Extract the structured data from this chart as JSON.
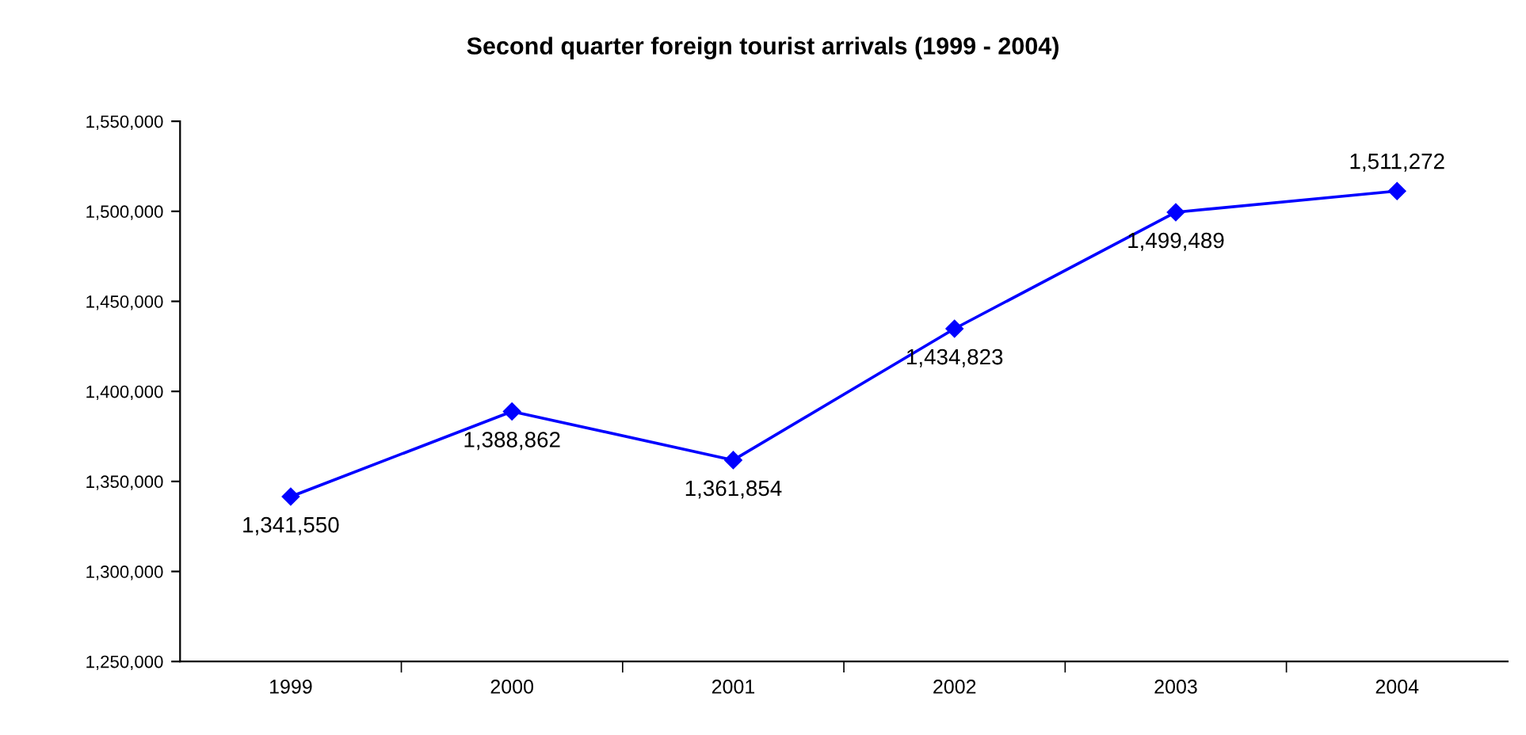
{
  "chart_data": {
    "type": "line",
    "title": "Second quarter foreign tourist arrivals (1999 - 2004)",
    "categories": [
      "1999",
      "2000",
      "2001",
      "2002",
      "2003",
      "2004"
    ],
    "series": [
      {
        "color": "#0000ff",
        "values": [
          1341550,
          1388862,
          1361854,
          1434823,
          1499489,
          1511272
        ]
      }
    ],
    "value_labels": [
      "1,341,550",
      "1,388,862",
      "1,361,854",
      "1,434,823",
      "1,499,489",
      "1,511,272"
    ],
    "ylim": [
      1250000,
      1550000
    ],
    "yticks": [
      {
        "value": 1250000,
        "label": "1,250,000"
      },
      {
        "value": 1300000,
        "label": "1,300,000"
      },
      {
        "value": 1350000,
        "label": "1,350,000"
      },
      {
        "value": 1400000,
        "label": "1,400,000"
      },
      {
        "value": 1450000,
        "label": "1,450,000"
      },
      {
        "value": 1500000,
        "label": "1,500,000"
      },
      {
        "value": 1550000,
        "label": "1,550,000"
      }
    ],
    "marker": "diamond",
    "line_style": "solid",
    "grid": false
  }
}
